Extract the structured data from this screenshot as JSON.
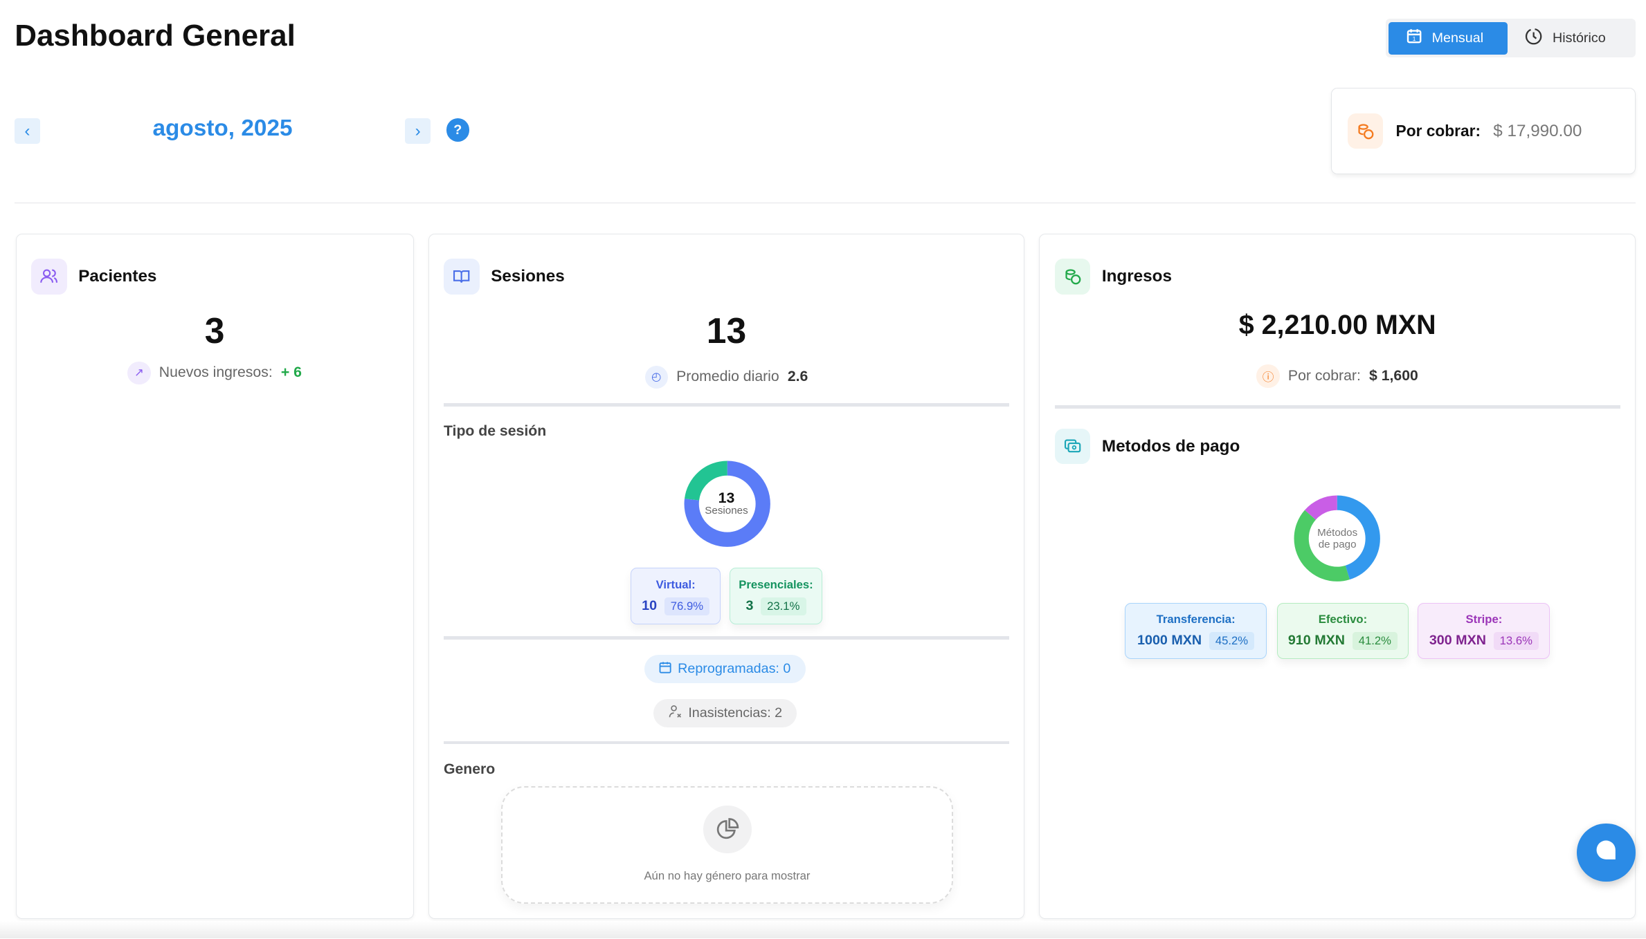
{
  "header": {
    "title": "Dashboard General",
    "view_toggle": {
      "monthly": "Mensual",
      "history": "Histórico",
      "active": "Mensual"
    }
  },
  "period": {
    "label": "agosto, 2025",
    "prev_icon": "chevron-left-icon",
    "next_icon": "chevron-right-icon",
    "help": "?"
  },
  "receivable_summary": {
    "label": "Por cobrar:",
    "value": "$ 17,990.00"
  },
  "patients": {
    "title": "Pacientes",
    "count": "3",
    "new_label": "Nuevos ingresos:",
    "new_value": "+ 6"
  },
  "sessions": {
    "title": "Sesiones",
    "count": "13",
    "avg_label": "Promedio diario",
    "avg_value": "2.6",
    "type_title": "Tipo de sesión",
    "donut": {
      "center_value": "13",
      "center_label": "Sesiones",
      "segments": [
        {
          "name": "Virtual",
          "value": 10,
          "percent": 76.9,
          "color": "#5b7cf7"
        },
        {
          "name": "Presenciales",
          "value": 3,
          "percent": 23.1,
          "color": "#22c493"
        }
      ]
    },
    "virtual": {
      "label": "Virtual:",
      "value": "10",
      "percent": "76.9%"
    },
    "presencial": {
      "label": "Presenciales:",
      "value": "3",
      "percent": "23.1%"
    },
    "rescheduled": "Reprogramadas: 0",
    "no_shows": "Inasistencias: 2",
    "gender_title": "Genero",
    "gender_empty": "Aún no hay género para mostrar"
  },
  "income": {
    "title": "Ingresos",
    "total": "$ 2,210.00 MXN",
    "receivable_label": "Por cobrar:",
    "receivable_value": "$ 1,600",
    "methods_title": "Metodos de pago",
    "donut": {
      "center_label_1": "Métodos",
      "center_label_2": "de pago",
      "segments": [
        {
          "name": "Transferencia",
          "value": 1000,
          "percent": 45.2,
          "color": "#3399ee"
        },
        {
          "name": "Efectivo",
          "value": 910,
          "percent": 41.2,
          "color": "#4ccb66"
        },
        {
          "name": "Stripe",
          "value": 300,
          "percent": 13.6,
          "color": "#c95ee6"
        }
      ]
    },
    "methods": [
      {
        "label": "Transferencia:",
        "value": "1000 MXN",
        "percent": "45.2%"
      },
      {
        "label": "Efectivo:",
        "value": "910 MXN",
        "percent": "41.2%"
      },
      {
        "label": "Stripe:",
        "value": "300 MXN",
        "percent": "13.6%"
      }
    ]
  }
}
